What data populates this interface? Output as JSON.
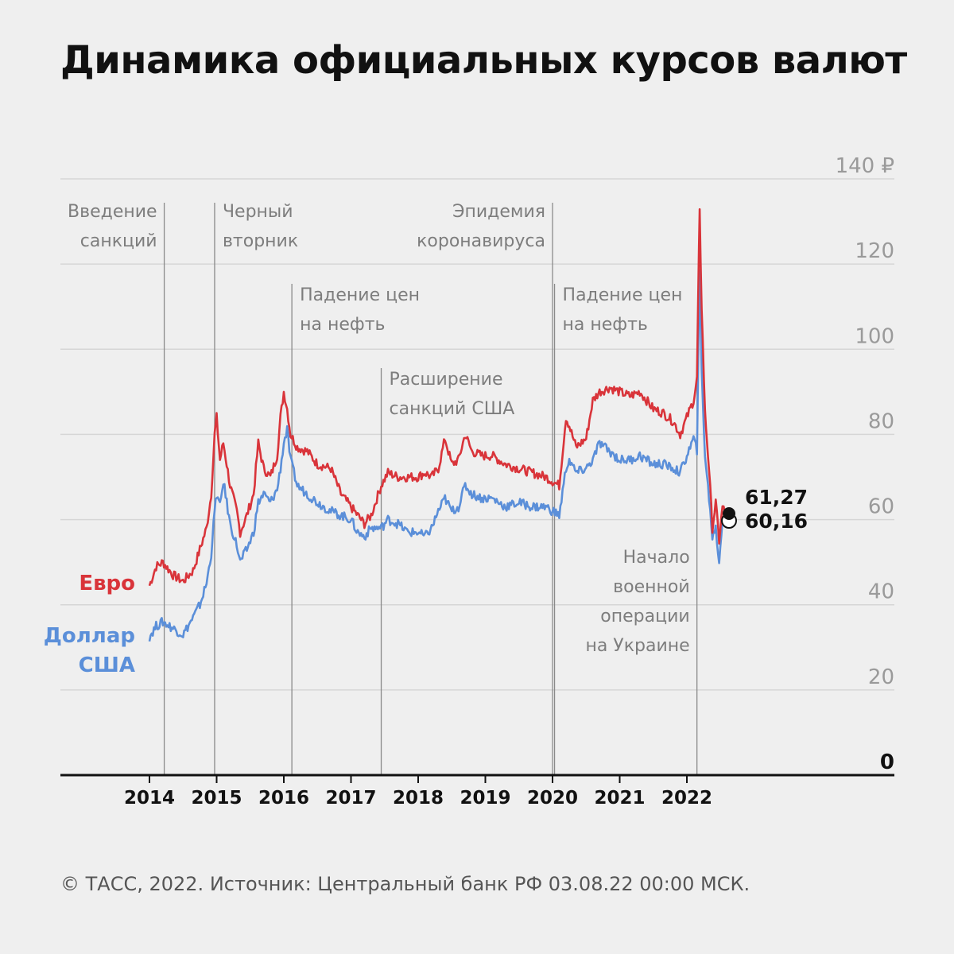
{
  "title": "Динамика официальных курсов валют",
  "footer": "© ТАСС, 2022. Источник: Центральный банк РФ 03.08.22 00:00 МСК.",
  "colors": {
    "euro": "#d9343a",
    "usd": "#5b8fd9",
    "grid": "#d6d6d6",
    "axis": "#111111",
    "event_line": "#8a8a8a"
  },
  "chart_data": {
    "type": "line",
    "ylim": [
      0,
      140
    ],
    "yticks": [
      {
        "value": 0,
        "label": "0"
      },
      {
        "value": 20,
        "label": "20"
      },
      {
        "value": 40,
        "label": "40"
      },
      {
        "value": 60,
        "label": "60"
      },
      {
        "value": 80,
        "label": "80"
      },
      {
        "value": 100,
        "label": "100"
      },
      {
        "value": 120,
        "label": "120"
      },
      {
        "value": 140,
        "label": "140 ₽"
      }
    ],
    "xlim": [
      2013.7,
      2023.3
    ],
    "xticks": [
      {
        "value": 2014.0,
        "label": "2014"
      },
      {
        "value": 2015.0,
        "label": "2015"
      },
      {
        "value": 2016.0,
        "label": "2016"
      },
      {
        "value": 2017.0,
        "label": "2017"
      },
      {
        "value": 2018.0,
        "label": "2018"
      },
      {
        "value": 2019.0,
        "label": "2019"
      },
      {
        "value": 2020.0,
        "label": "2020"
      },
      {
        "value": 2021.0,
        "label": "2021"
      },
      {
        "value": 2022.0,
        "label": "2022"
      }
    ],
    "series": [
      {
        "name": "Евро",
        "x": [
          2014.0,
          2014.1,
          2014.2,
          2014.35,
          2014.5,
          2014.65,
          2014.75,
          2014.85,
          2014.92,
          2014.97,
          2015.0,
          2015.05,
          2015.1,
          2015.2,
          2015.3,
          2015.35,
          2015.45,
          2015.55,
          2015.62,
          2015.7,
          2015.8,
          2015.9,
          2015.95,
          2016.0,
          2016.05,
          2016.1,
          2016.2,
          2016.35,
          2016.5,
          2016.7,
          2016.85,
          2017.0,
          2017.1,
          2017.2,
          2017.3,
          2017.45,
          2017.55,
          2017.7,
          2017.85,
          2018.0,
          2018.1,
          2018.2,
          2018.3,
          2018.4,
          2018.5,
          2018.6,
          2018.7,
          2018.8,
          2018.95,
          2019.1,
          2019.3,
          2019.5,
          2019.7,
          2019.9,
          2020.0,
          2020.1,
          2020.2,
          2020.25,
          2020.35,
          2020.5,
          2020.6,
          2020.7,
          2020.85,
          2021.0,
          2021.15,
          2021.3,
          2021.5,
          2021.65,
          2021.8,
          2021.9,
          2022.0,
          2022.1,
          2022.15,
          2022.17,
          2022.19,
          2022.22,
          2022.27,
          2022.33,
          2022.38,
          2022.43,
          2022.48,
          2022.53,
          2022.58
        ],
        "values": [
          44.5,
          49,
          50,
          47,
          45.5,
          48,
          53,
          58,
          66,
          80,
          84,
          74,
          78,
          68,
          62,
          57,
          61,
          66,
          78,
          72,
          70,
          75,
          84,
          90,
          86,
          80,
          77,
          76,
          73,
          72,
          66,
          63,
          61,
          59,
          61,
          68,
          71,
          70,
          70,
          70,
          71,
          70,
          72,
          79,
          73,
          74,
          80,
          76,
          75,
          75,
          73,
          72,
          71,
          70,
          69,
          68,
          84,
          82,
          77,
          79,
          88,
          90,
          91,
          90,
          89,
          90,
          86,
          85,
          83,
          80,
          84,
          88,
          93,
          114,
          132,
          110,
          85,
          72,
          58,
          64,
          55,
          63,
          61.27
        ]
      },
      {
        "name": "Доллар США",
        "x": [
          2014.0,
          2014.1,
          2014.2,
          2014.35,
          2014.5,
          2014.65,
          2014.75,
          2014.85,
          2014.92,
          2014.97,
          2015.0,
          2015.05,
          2015.1,
          2015.2,
          2015.3,
          2015.35,
          2015.45,
          2015.55,
          2015.62,
          2015.7,
          2015.8,
          2015.9,
          2015.95,
          2016.0,
          2016.05,
          2016.1,
          2016.2,
          2016.35,
          2016.5,
          2016.7,
          2016.85,
          2017.0,
          2017.1,
          2017.2,
          2017.3,
          2017.45,
          2017.55,
          2017.7,
          2017.85,
          2018.0,
          2018.1,
          2018.2,
          2018.3,
          2018.4,
          2018.5,
          2018.6,
          2018.7,
          2018.8,
          2018.95,
          2019.1,
          2019.3,
          2019.5,
          2019.7,
          2019.9,
          2020.0,
          2020.1,
          2020.2,
          2020.25,
          2020.35,
          2020.5,
          2020.6,
          2020.7,
          2020.85,
          2021.0,
          2021.15,
          2021.3,
          2021.5,
          2021.65,
          2021.8,
          2021.9,
          2022.0,
          2022.1,
          2022.15,
          2022.17,
          2022.19,
          2022.22,
          2022.27,
          2022.33,
          2022.38,
          2022.43,
          2022.48,
          2022.53,
          2022.58
        ],
        "values": [
          32.5,
          35,
          36,
          34.5,
          33,
          37,
          40,
          45,
          52,
          62,
          66,
          63,
          69,
          59,
          54,
          50,
          53,
          57,
          64,
          66,
          64,
          67,
          72,
          78,
          81,
          74,
          68,
          66,
          64,
          62,
          61,
          60,
          57,
          56,
          58,
          58,
          60,
          59,
          57,
          57,
          56,
          58,
          62,
          65,
          62,
          63,
          68,
          66,
          65,
          65,
          63,
          64,
          63,
          63,
          62,
          61,
          72,
          74,
          71,
          72,
          74,
          78,
          76,
          74,
          74,
          75,
          73,
          73,
          72,
          71,
          75,
          79,
          76,
          100,
          118,
          95,
          75,
          65,
          56,
          58,
          50,
          60,
          60.16
        ]
      }
    ],
    "events": [
      {
        "x": 2014.22,
        "label": [
          "Введение",
          "санкций"
        ]
      },
      {
        "x": 2014.97,
        "label": [
          "Черный",
          "вторник"
        ]
      },
      {
        "x": 2016.12,
        "label": [
          "Падение цен",
          "на нефть"
        ]
      },
      {
        "x": 2017.45,
        "label": [
          "Расширение",
          "санкций США"
        ]
      },
      {
        "x": 2020.0,
        "label": [
          "Эпидемия",
          "коронавируса"
        ]
      },
      {
        "x": 2020.03,
        "label": [
          "Падение цен",
          "на нефть"
        ]
      },
      {
        "x": 2022.15,
        "label": [
          "Начало",
          "военной",
          "операции",
          "на Украине"
        ]
      }
    ],
    "end_labels": {
      "euro": "61,27",
      "usd": "60,16"
    },
    "legend": {
      "euro": "Евро",
      "usd": [
        "Доллар",
        "США"
      ]
    }
  }
}
